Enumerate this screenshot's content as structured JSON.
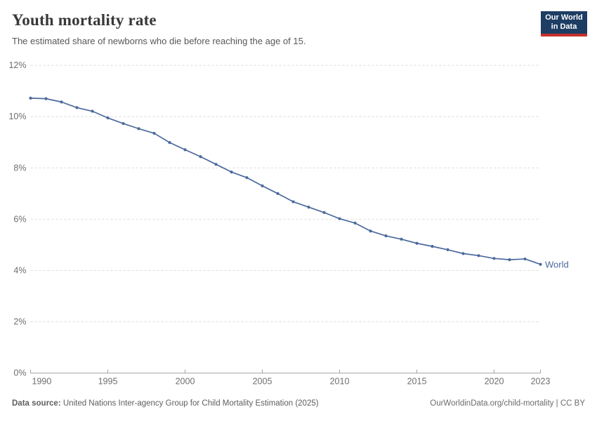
{
  "header": {
    "title": "Youth mortality rate",
    "subtitle": "The estimated share of newborns who die before reaching the age of 15."
  },
  "logo": {
    "line1": "Our World",
    "line2": "in Data",
    "bg_color": "#1d3d63",
    "accent_color": "#c5312b"
  },
  "chart_data": {
    "type": "line",
    "title": "Youth mortality rate",
    "xlabel": "",
    "ylabel": "",
    "unit": "%",
    "ylim": [
      0,
      12
    ],
    "y_ticks": [
      0,
      2,
      4,
      6,
      8,
      10,
      12
    ],
    "y_tick_labels": [
      "0%",
      "2%",
      "4%",
      "6%",
      "8%",
      "10%",
      "12%"
    ],
    "x_ticks": [
      1990,
      1995,
      2000,
      2005,
      2010,
      2015,
      2020,
      2023
    ],
    "grid": "horizontal-dashed",
    "legend_position": "end-of-line",
    "x": [
      1990,
      1991,
      1992,
      1993,
      1994,
      1995,
      1996,
      1997,
      1998,
      1999,
      2000,
      2001,
      2002,
      2003,
      2004,
      2005,
      2006,
      2007,
      2008,
      2009,
      2010,
      2011,
      2012,
      2013,
      2014,
      2015,
      2016,
      2017,
      2018,
      2019,
      2020,
      2021,
      2022,
      2023
    ],
    "series": [
      {
        "name": "World",
        "color": "#4C6A9C",
        "values": [
          10.72,
          10.7,
          10.57,
          10.35,
          10.21,
          9.95,
          9.73,
          9.53,
          9.35,
          8.99,
          8.71,
          8.44,
          8.14,
          7.84,
          7.62,
          7.3,
          7.0,
          6.68,
          6.47,
          6.26,
          6.02,
          5.85,
          5.54,
          5.35,
          5.22,
          5.06,
          4.94,
          4.81,
          4.66,
          4.58,
          4.47,
          4.42,
          4.45,
          4.24
        ]
      }
    ],
    "style": {
      "gridline_color": "#dcdcdc",
      "axis_color": "#a3a3a3",
      "tick_label_color": "#6e6e6e"
    }
  },
  "footer": {
    "datasource_label": "Data source:",
    "datasource_text": "United Nations Inter-agency Group for Child Mortality Estimation (2025)",
    "link_text": "OurWorldinData.org/child-mortality",
    "separator": "|",
    "license": "CC BY"
  }
}
